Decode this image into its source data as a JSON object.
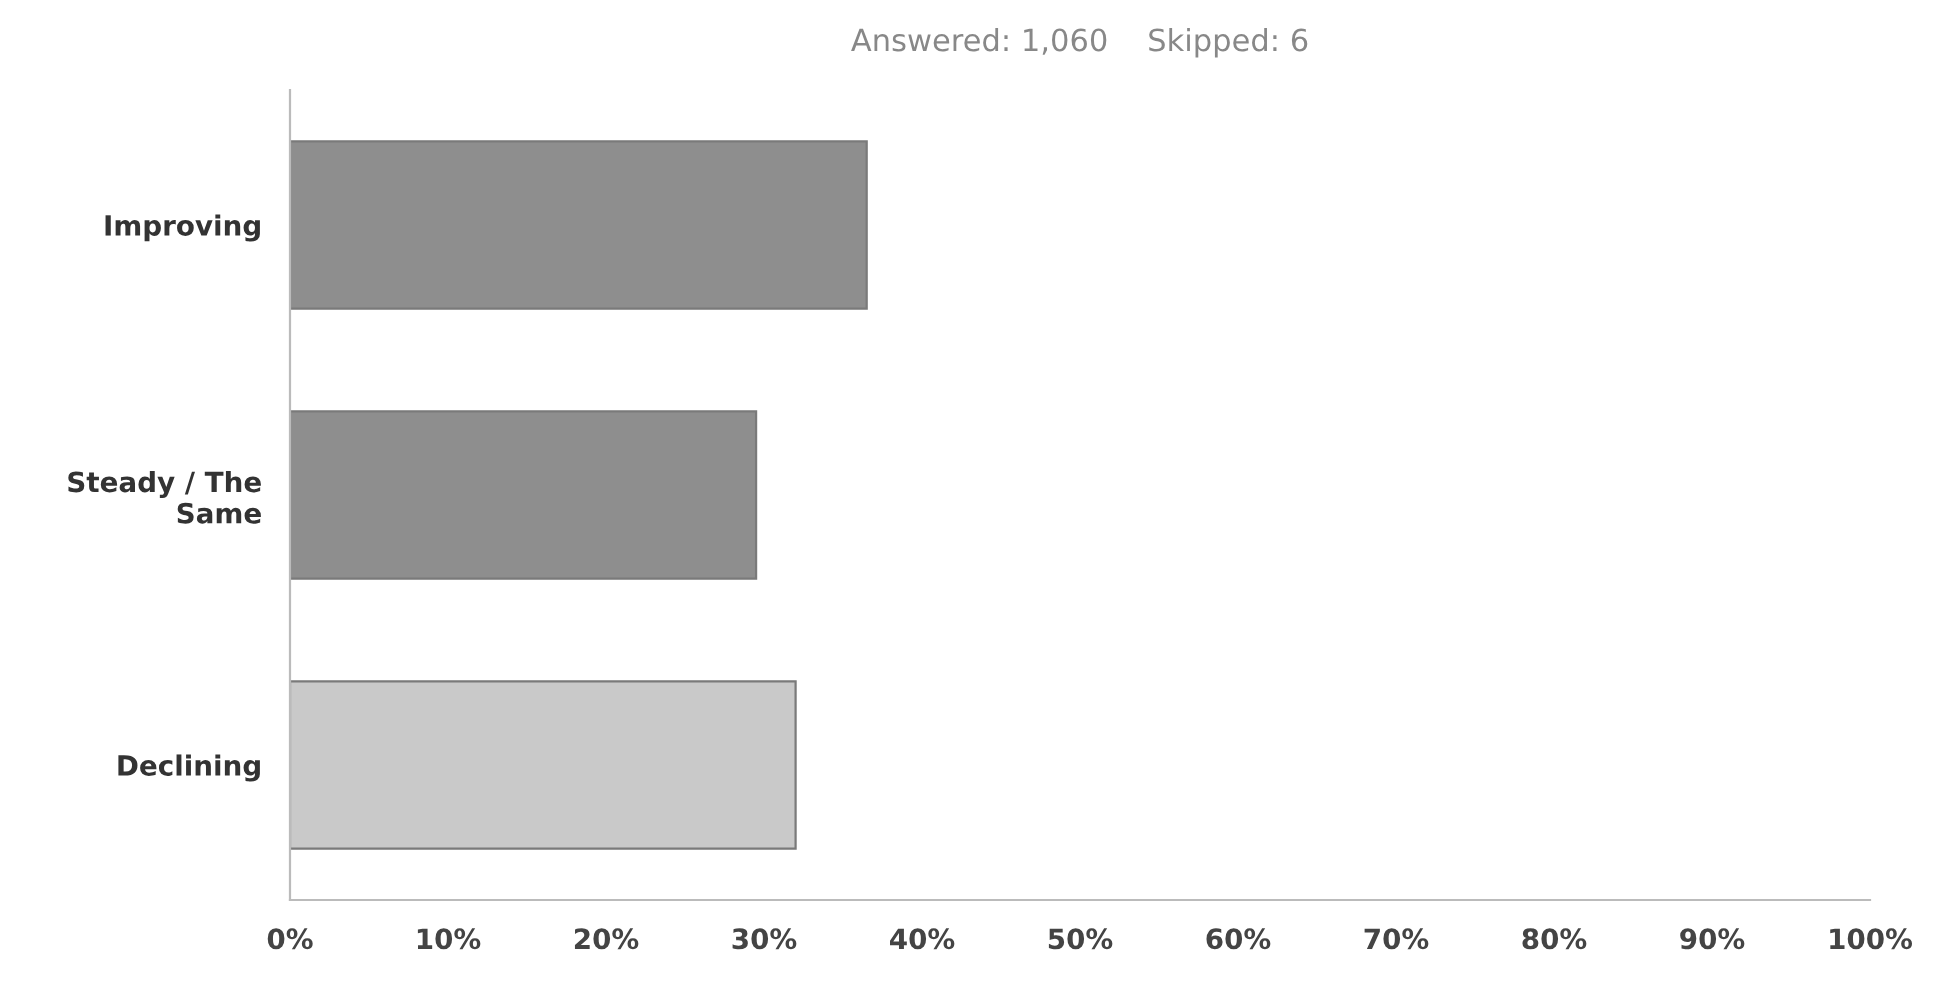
{
  "chart_data": {
    "type": "bar",
    "orientation": "horizontal",
    "title": "Answered: 1,060    Skipped: 6",
    "categories": [
      "Improving",
      "Steady / The\nSame",
      "Declining"
    ],
    "values": [
      36.5,
      29.5,
      32
    ],
    "colors": [
      "#8e8e8e",
      "#8e8e8e",
      "#c9c9c9"
    ],
    "xlim": [
      0,
      100
    ],
    "xticks": [
      {
        "value": 0,
        "label": "0%"
      },
      {
        "value": 10,
        "label": "10%"
      },
      {
        "value": 20,
        "label": "20%"
      },
      {
        "value": 30,
        "label": "30%"
      },
      {
        "value": 40,
        "label": "40%"
      },
      {
        "value": 50,
        "label": "50%"
      },
      {
        "value": 60,
        "label": "60%"
      },
      {
        "value": 70,
        "label": "70%"
      },
      {
        "value": 80,
        "label": "80%"
      },
      {
        "value": 90,
        "label": "90%"
      },
      {
        "value": 100,
        "label": "100%"
      }
    ],
    "grid": false
  }
}
